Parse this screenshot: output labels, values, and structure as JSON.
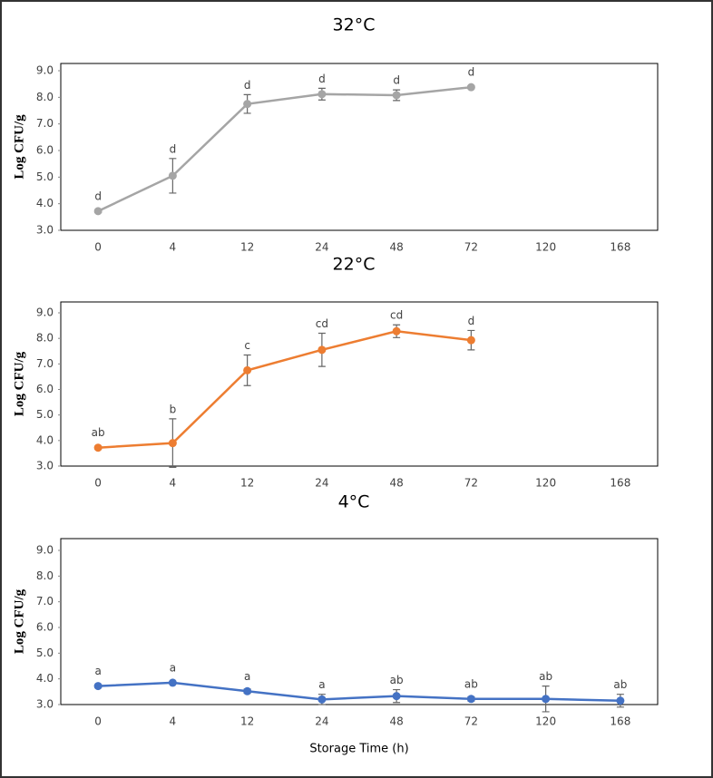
{
  "chart_data": [
    {
      "type": "line",
      "title": "32°C",
      "ylabel": "Log CFU/g",
      "categories": [
        "0",
        "4",
        "12",
        "24",
        "48",
        "72",
        "120",
        "168"
      ],
      "series": [
        {
          "color": "#a5a5a5",
          "values": [
            3.72,
            5.05,
            7.75,
            8.12,
            8.08,
            8.38,
            null,
            null
          ],
          "errors": [
            0.05,
            0.65,
            0.35,
            0.22,
            0.2,
            0.05,
            null,
            null
          ],
          "annotations": [
            "d",
            "d",
            "d",
            "d",
            "d",
            "d",
            null,
            null
          ]
        }
      ],
      "ylim": [
        3,
        9
      ],
      "yticks": [
        {
          "value": 3,
          "label": "3.0"
        },
        {
          "value": 4,
          "label": "4.0"
        },
        {
          "value": 5,
          "label": "5.0"
        },
        {
          "value": 6,
          "label": "6.0"
        },
        {
          "value": 7,
          "label": "7.0"
        },
        {
          "value": 8,
          "label": "8.0"
        },
        {
          "value": 9,
          "label": "9.0"
        }
      ]
    },
    {
      "type": "line",
      "title": "22°C",
      "ylabel": "Log CFU/g",
      "categories": [
        "0",
        "4",
        "12",
        "24",
        "48",
        "72",
        "120",
        "168"
      ],
      "series": [
        {
          "color": "#ed7d31",
          "values": [
            3.72,
            3.9,
            6.75,
            7.55,
            8.28,
            7.93,
            null,
            null
          ],
          "errors": [
            0.05,
            0.95,
            0.6,
            0.65,
            0.25,
            0.38,
            null,
            null
          ],
          "annotations": [
            "ab",
            "b",
            "c",
            "cd",
            "cd",
            "d",
            null,
            null
          ]
        }
      ],
      "ylim": [
        3,
        9
      ],
      "yticks": [
        {
          "value": 3,
          "label": "3.0"
        },
        {
          "value": 4,
          "label": "4.0"
        },
        {
          "value": 5,
          "label": "5.0"
        },
        {
          "value": 6,
          "label": "6.0"
        },
        {
          "value": 7,
          "label": "7.0"
        },
        {
          "value": 8,
          "label": "8.0"
        },
        {
          "value": 9,
          "label": "9.0"
        }
      ]
    },
    {
      "type": "line",
      "title": "4°C",
      "ylabel": "Log CFU/g",
      "xlabel": "Storage Time (h)",
      "categories": [
        "0",
        "4",
        "12",
        "24",
        "48",
        "72",
        "120",
        "168"
      ],
      "series": [
        {
          "color": "#4472c4",
          "values": [
            3.72,
            3.85,
            3.52,
            3.2,
            3.33,
            3.22,
            3.22,
            3.15
          ],
          "errors": [
            0.05,
            0.05,
            0.08,
            0.2,
            0.25,
            0.08,
            0.5,
            0.25
          ],
          "annotations": [
            "a",
            "a",
            "a",
            "a",
            "ab",
            "ab",
            "ab",
            "ab"
          ]
        }
      ],
      "ylim": [
        3,
        9
      ],
      "yticks": [
        {
          "value": 3,
          "label": "3.0"
        },
        {
          "value": 4,
          "label": "4.0"
        },
        {
          "value": 5,
          "label": "5.0"
        },
        {
          "value": 6,
          "label": "6.0"
        },
        {
          "value": 7,
          "label": "7.0"
        },
        {
          "value": 8,
          "label": "8.0"
        },
        {
          "value": 9,
          "label": "9.0"
        }
      ]
    }
  ]
}
